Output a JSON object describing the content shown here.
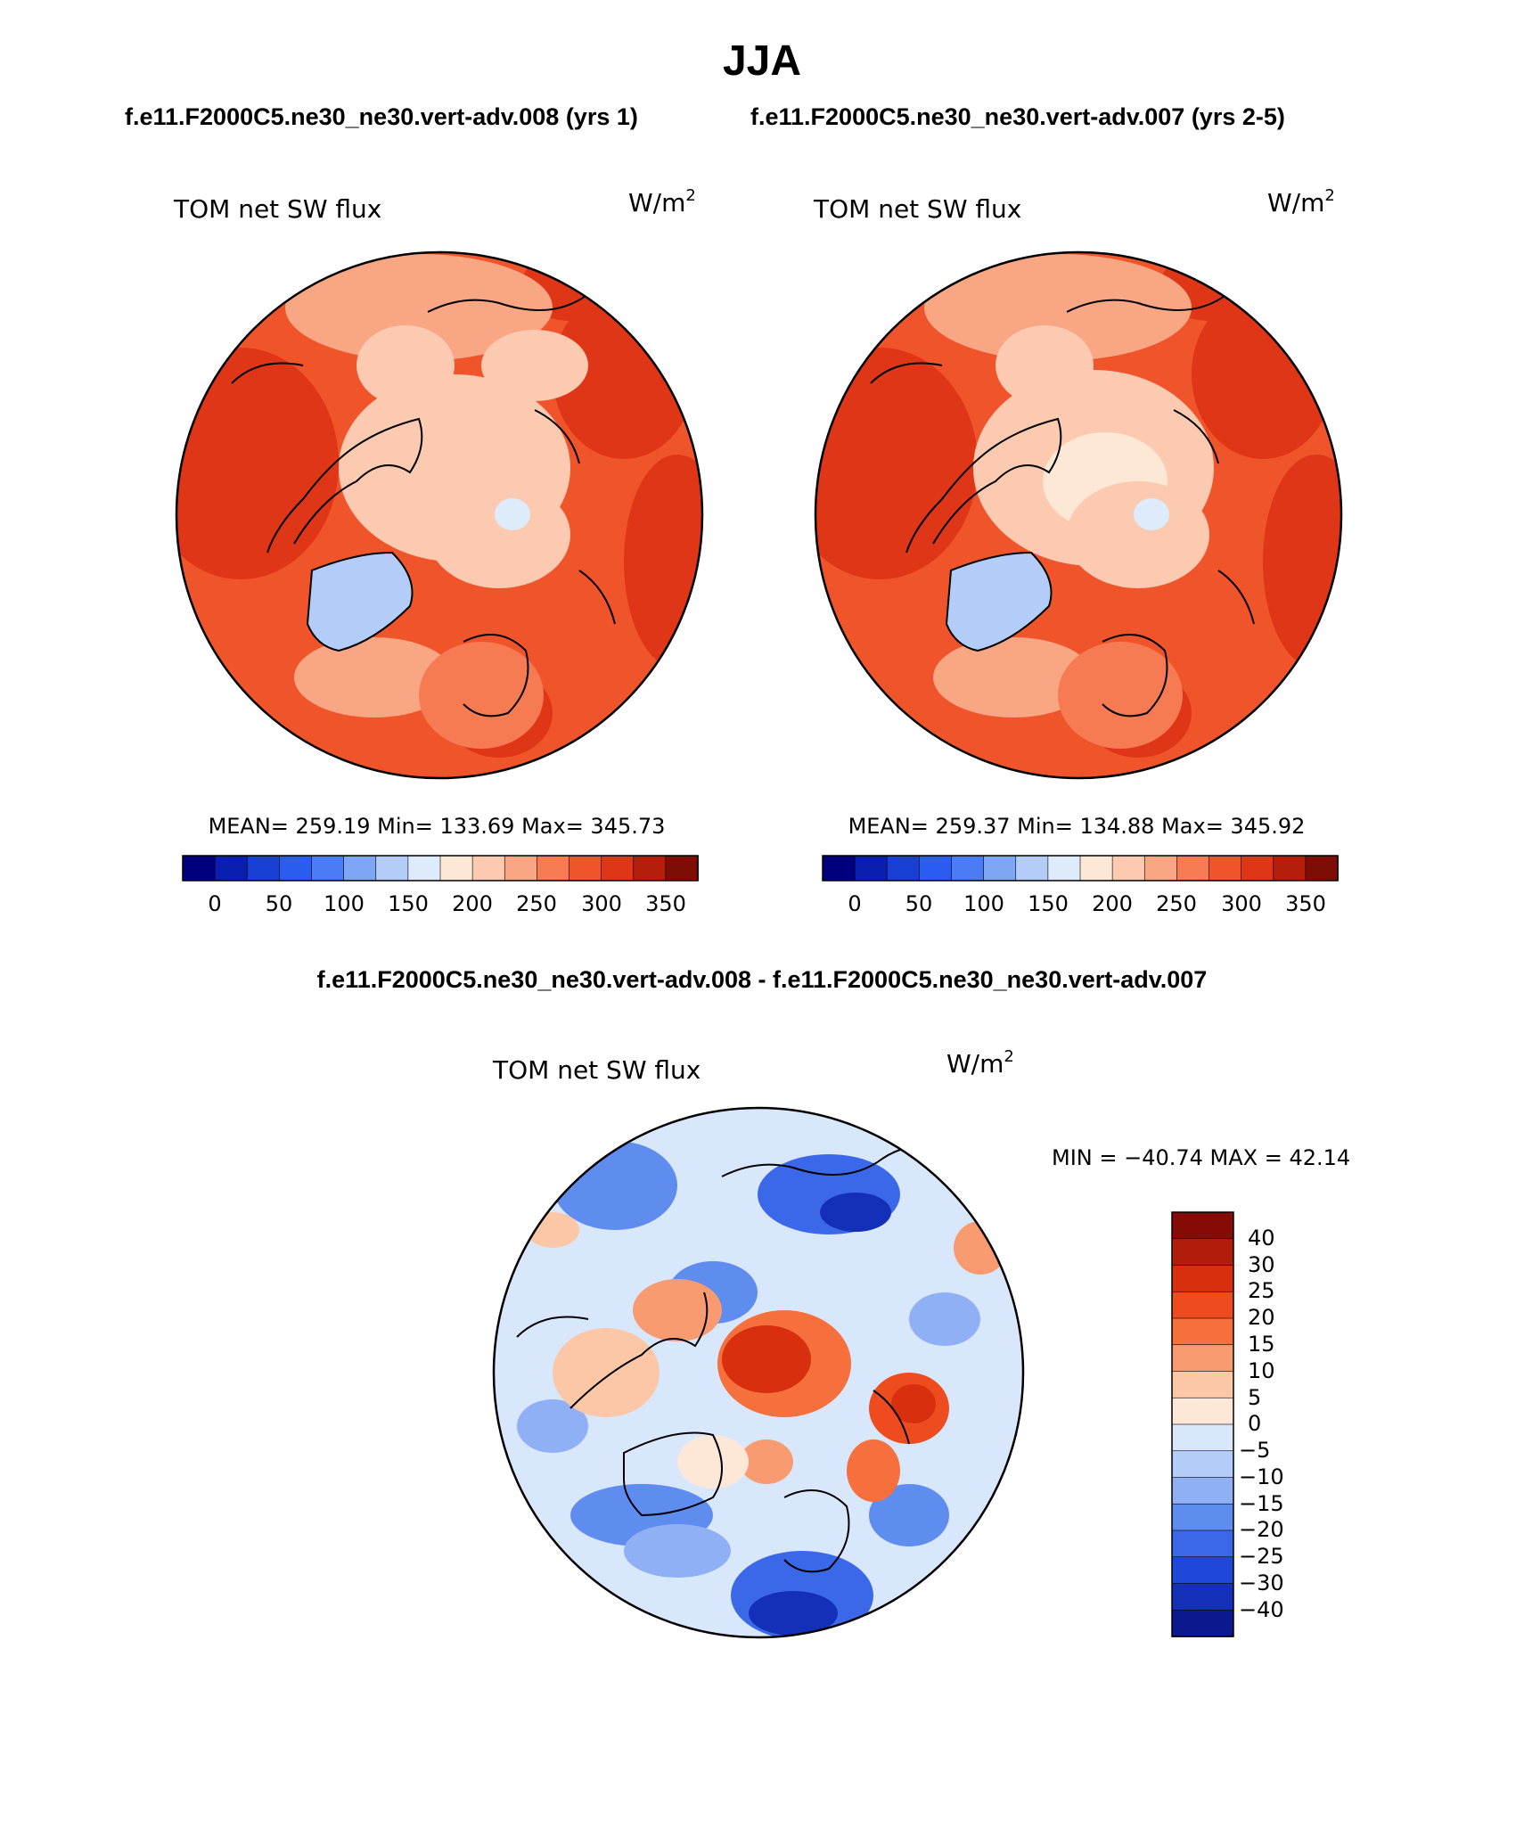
{
  "page": {
    "season": "JJA",
    "subtitle_left": "f.e11.F2000C5.ne30_ne30.vert-adv.008 (yrs 1)",
    "subtitle_right": "f.e11.F2000C5.ne30_ne30.vert-adv.007 (yrs 2-5)",
    "diff_title": "f.e11.F2000C5.ne30_ne30.vert-adv.008 - f.e11.F2000C5.ne30_ne30.vert-adv.007"
  },
  "panels": [
    {
      "variable": "TOM net SW flux",
      "units_base": "W/m",
      "units_exp": "2",
      "stats": "MEAN= 259.19   Min= 133.69   Max= 345.73",
      "colorbar_ticks": [
        "0",
        "50",
        "100",
        "150",
        "200",
        "250",
        "300",
        "350"
      ]
    },
    {
      "variable": "TOM net SW flux",
      "units_base": "W/m",
      "units_exp": "2",
      "stats": "MEAN= 259.37   Min= 134.88   Max= 345.92",
      "colorbar_ticks": [
        "0",
        "50",
        "100",
        "150",
        "200",
        "250",
        "300",
        "350"
      ]
    }
  ],
  "diff_panel": {
    "variable": "TOM net SW flux",
    "units_base": "W/m",
    "units_exp": "2",
    "minmax": "MIN = −40.74 MAX =  42.14",
    "colorbar_labels": [
      "40",
      "30",
      "25",
      "20",
      "15",
      "10",
      "5",
      "0",
      "−5",
      "−10",
      "−15",
      "−20",
      "−25",
      "−30",
      "−40"
    ]
  },
  "colors": {
    "abs_scale": [
      "#00007f",
      "#0a1eb0",
      "#1a3fd4",
      "#2b5cf0",
      "#4a7cf5",
      "#7ea6f5",
      "#b4cdf8",
      "#ddebfb",
      "#fde7d5",
      "#fccab0",
      "#f9a684",
      "#f67b52",
      "#f0542b",
      "#de3616",
      "#b41e0a",
      "#7e0e05"
    ],
    "diff_scale": [
      "#860b06",
      "#b21c0a",
      "#d8300f",
      "#ee4c1f",
      "#f6703d",
      "#f99b70",
      "#fbc7a6",
      "#fde8d8",
      "#d8e7fb",
      "#b4cdf8",
      "#8fb0f4",
      "#5f8cef",
      "#3a68e8",
      "#1f48da",
      "#1530b8",
      "#0a1a8e"
    ],
    "ocean_warm": "#f0542b",
    "coast": "#000000"
  }
}
